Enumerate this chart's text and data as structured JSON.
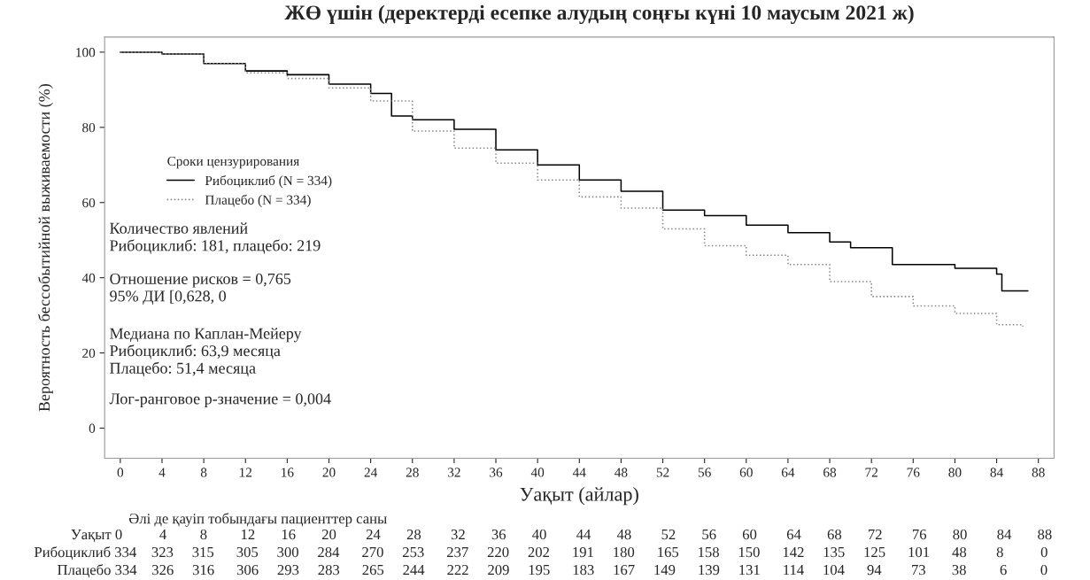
{
  "chart_data": {
    "type": "step",
    "title": "ЖӨ үшін (деректерді есепке алудың соңғы күні 10 маусым 2021 ж)",
    "xlabel": "Уақыт (айлар)",
    "ylabel": "Вероятность бессобытийной выживаемости (%)",
    "legend_title": "Сроки цензурирования",
    "legend": "left",
    "grid": false,
    "xlim": [
      -1.5,
      89.5
    ],
    "ylim": [
      -8,
      104
    ],
    "xticks": [
      0,
      4,
      8,
      12,
      16,
      20,
      24,
      28,
      32,
      36,
      40,
      44,
      48,
      52,
      56,
      60,
      64,
      68,
      72,
      76,
      80,
      84,
      88
    ],
    "yticks": [
      0,
      20,
      40,
      60,
      80,
      100
    ],
    "series": [
      {
        "name": "Рибоциклиб (N = 334)",
        "color": "#000000",
        "line_style": "solid",
        "x": [
          0,
          4,
          8,
          12,
          16,
          20,
          24,
          26,
          28,
          32,
          36,
          40,
          44,
          48,
          52,
          56,
          60,
          64,
          68,
          70,
          74,
          80,
          84,
          84.5,
          87
        ],
        "values": [
          100,
          99.5,
          97,
          95,
          94,
          91.5,
          89,
          83,
          82,
          79.5,
          74,
          70,
          66,
          63,
          58,
          56.5,
          54,
          52,
          49.5,
          48,
          43.5,
          42.5,
          41,
          36.5,
          36.5
        ]
      },
      {
        "name": "Плацебо (N = 334)",
        "color": "#888888",
        "line_style": "dotted",
        "x": [
          0,
          4,
          8,
          12,
          16,
          20,
          24,
          28,
          32,
          36,
          40,
          44,
          48,
          52,
          56,
          60,
          64,
          68,
          72,
          76,
          80,
          84,
          86.5
        ],
        "values": [
          100,
          99.5,
          97,
          94.5,
          93,
          90.5,
          87,
          79,
          74.5,
          70.5,
          66,
          61.5,
          58.5,
          53,
          48.5,
          46,
          43.5,
          39,
          35,
          32.5,
          30.5,
          27.5,
          27
        ]
      }
    ],
    "annotations": [
      "Количество явлений\nРибоциклиб: 181, плацебо: 219",
      "Отношение рисков = 0,765\n95% ДИ [0,628, 0",
      "Медиана по Каплан-Мейеру\nРибоциклиб: 63,9 месяца\nПлацебо: 51,4 месяца",
      "Лог-ранговое р-значение = 0,004",
      "Әлі де қауіп тобындағы пациенттер саны",
      "Уақыт 0 4 8 12 16 20 24 28 32 36 40 44 48 52 56 60 64 68 72 76 80 84 88",
      "Рибоциклиб 334 323 315 305 300 284 270 253 237 220 202 191 180 165 158 150 142 135 125 101 48 8 0",
      "Плацебо 334 326 316 306 293 283 265 244 222 209 195 183 167 149 139 131 114 104 94 73 38 6 0"
    ]
  }
}
